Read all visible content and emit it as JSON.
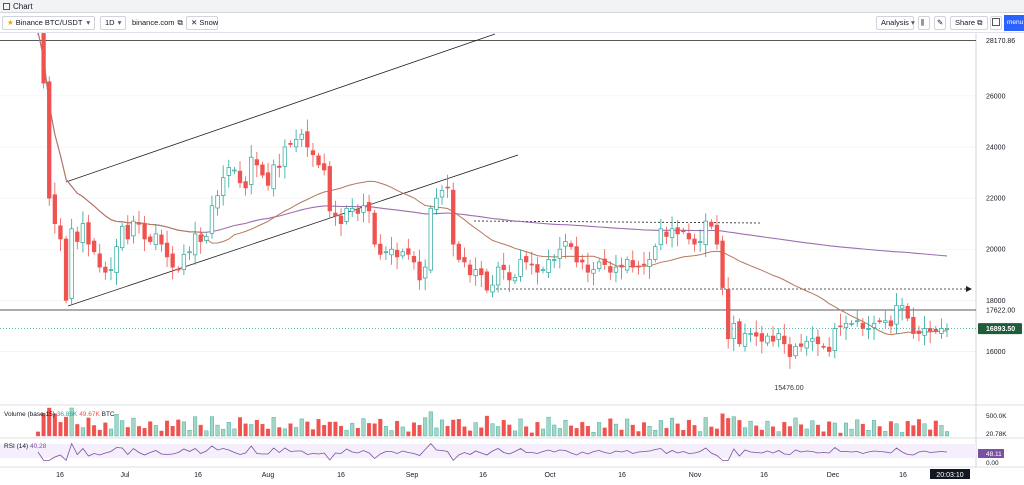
{
  "window": {
    "title": "Chart"
  },
  "toolbar": {
    "symbol": "Binance BTC/USDT",
    "interval": "1D",
    "source": "binance.com",
    "snow": "Snow",
    "analysis": "Analysis",
    "share": "Share",
    "menu": "menu"
  },
  "colors": {
    "up": "#26a69a",
    "down": "#ef5350",
    "ma_slow": "#9c6fb0",
    "ma_fast": "#b5785b",
    "last_price_bg": "#1e5c3a"
  },
  "chart_data": {
    "type": "candlestick",
    "symbol": "Binance BTC/USDT",
    "interval": "1D",
    "y_axis_ticks": [
      16000,
      18000,
      20000,
      22000,
      24000,
      26000
    ],
    "y_range": [
      14100,
      28500
    ],
    "marked_levels": [
      {
        "label": "28170.86",
        "value": 28170.86
      },
      {
        "label": "17622.00",
        "value": 17622
      }
    ],
    "last_price": {
      "label": "16893.50",
      "value": 16893.5
    },
    "low_annotation": {
      "label": "15476.00",
      "value": 15476
    },
    "x_ticks": [
      "16",
      "Jul",
      "16",
      "Aug",
      "16",
      "Sep",
      "16",
      "Oct",
      "16",
      "Nov",
      "16",
      "Dec",
      "16"
    ],
    "time_label": "20:03:10",
    "closes_approx": [
      28500,
      26500,
      22000,
      21000,
      20400,
      18000,
      20800,
      20300,
      21000,
      20200,
      19900,
      19300,
      19100,
      19200,
      20100,
      20900,
      20400,
      21100,
      21000,
      20400,
      20300,
      20600,
      20200,
      19700,
      19300,
      19200,
      19800,
      19900,
      20600,
      20300,
      20500,
      21700,
      22100,
      22800,
      23200,
      23100,
      22600,
      22400,
      23600,
      23300,
      22900,
      22500,
      23300,
      23200,
      24000,
      24100,
      24300,
      24500,
      24000,
      23700,
      23300,
      23100,
      21500,
      21300,
      21000,
      21600,
      21600,
      21400,
      21700,
      21500,
      20200,
      19800,
      19900,
      20000,
      19700,
      19900,
      19800,
      19500,
      18800,
      19300,
      21600,
      22000,
      22300,
      22400,
      20200,
      19600,
      19500,
      19000,
      19200,
      19000,
      18400,
      18600,
      19300,
      19200,
      18800,
      18900,
      19600,
      19500,
      19400,
      19100,
      19200,
      19600,
      19600,
      20000,
      20300,
      20100,
      19500,
      19500,
      19100,
      19200,
      19500,
      19400,
      19100,
      19300,
      19300,
      19600,
      19300,
      19300,
      19400,
      19600,
      20100,
      20800,
      20500,
      20800,
      20600,
      20700,
      20400,
      20200,
      20300,
      21100,
      20900,
      20200,
      18500,
      16500,
      17100,
      16300,
      16700,
      16700,
      16600,
      16400,
      16600,
      16400,
      16700,
      16300,
      15800,
      16200,
      16200,
      16400,
      16500,
      16300,
      16200,
      16000,
      16900,
      17000,
      17100,
      17100,
      17200,
      16900,
      16900,
      17100,
      17200,
      17200,
      17000,
      17800,
      17800,
      17300,
      16700,
      16700,
      16900,
      16800,
      16800,
      16900,
      16893.5
    ],
    "volume": {
      "label": "Volume (base,15)",
      "values_text": [
        "36.86K",
        "49.67K"
      ],
      "unit": "BTC",
      "axis_ticks": [
        "500.0K",
        "20.78K"
      ]
    },
    "rsi": {
      "label": "RSI (14)",
      "value": 40.28,
      "value_text": "40.28",
      "axis_ticks": [
        "48.11",
        "0.00"
      ]
    }
  }
}
